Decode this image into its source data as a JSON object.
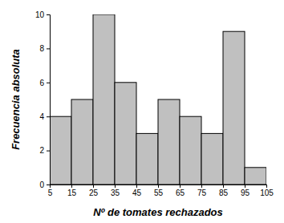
{
  "chart_data": {
    "type": "histogram",
    "xlabel": "Nº de tomates rechazados",
    "ylabel": "Frecuencia absoluta",
    "bins": [
      5,
      15,
      25,
      35,
      45,
      55,
      65,
      75,
      85,
      95,
      105
    ],
    "values": [
      4,
      5,
      10,
      6,
      3,
      5,
      4,
      3,
      9,
      1
    ],
    "color": "#c0c0c0",
    "xlim": [
      5,
      105
    ],
    "xticks": [
      5,
      15,
      25,
      35,
      45,
      55,
      65,
      75,
      85,
      95,
      105
    ],
    "ylim": [
      0,
      10
    ],
    "yticks": [
      0,
      2,
      4,
      6,
      8,
      10
    ]
  }
}
